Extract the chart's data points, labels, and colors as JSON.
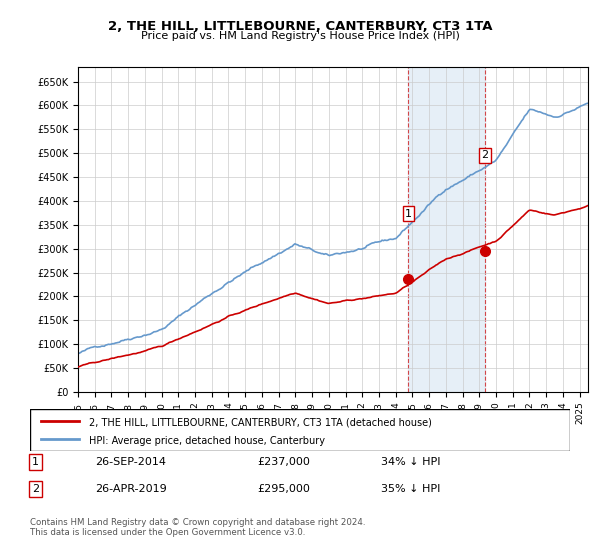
{
  "title": "2, THE HILL, LITTLEBOURNE, CANTERBURY, CT3 1TA",
  "subtitle": "Price paid vs. HM Land Registry's House Price Index (HPI)",
  "legend_line1": "2, THE HILL, LITTLEBOURNE, CANTERBURY, CT3 1TA (detached house)",
  "legend_line2": "HPI: Average price, detached house, Canterbury",
  "annotation1_label": "1",
  "annotation1_date": "26-SEP-2014",
  "annotation1_price": "£237,000",
  "annotation1_hpi": "34% ↓ HPI",
  "annotation2_label": "2",
  "annotation2_date": "26-APR-2019",
  "annotation2_price": "£295,000",
  "annotation2_hpi": "35% ↓ HPI",
  "footer": "Contains HM Land Registry data © Crown copyright and database right 2024.\nThis data is licensed under the Open Government Licence v3.0.",
  "hpi_color": "#a8c4e0",
  "hpi_line_color": "#6699cc",
  "price_color": "#cc0000",
  "annotation_color": "#cc0000",
  "shade_color": "#dce9f5",
  "ylim_min": 0,
  "ylim_max": 680000,
  "yticks": [
    0,
    50000,
    100000,
    150000,
    200000,
    250000,
    300000,
    350000,
    400000,
    450000,
    500000,
    550000,
    600000,
    650000
  ],
  "sale1_x": 2014.75,
  "sale1_y": 237000,
  "sale2_x": 2019.33,
  "sale2_y": 295000,
  "vline1_x": 2014.75,
  "vline2_x": 2019.33,
  "xmin": 1995,
  "xmax": 2025.5
}
